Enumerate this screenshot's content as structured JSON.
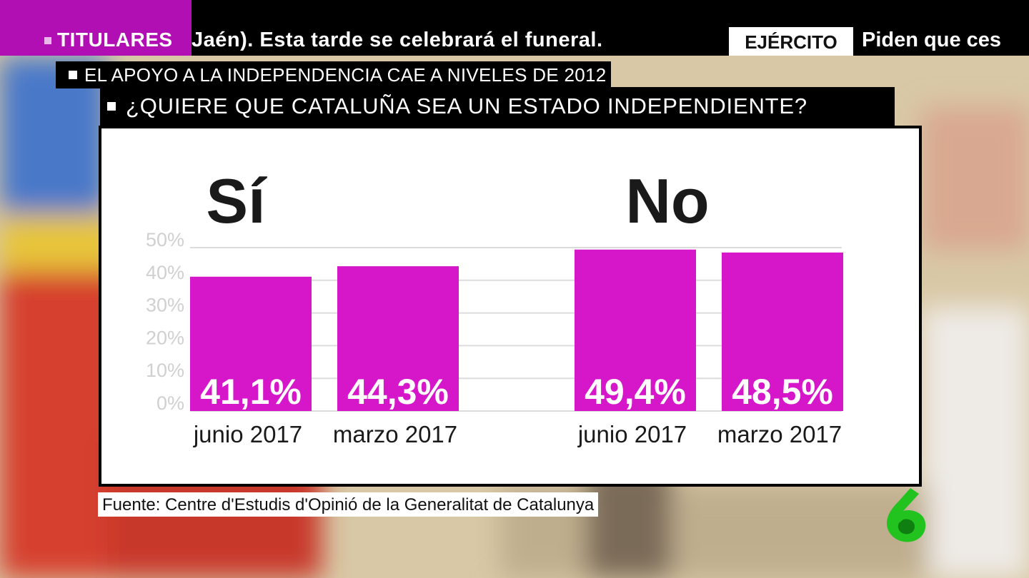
{
  "ticker": {
    "section": "TITULARES",
    "text": "Jaén). Esta tarde se celebrará el funeral.",
    "section2": "EJÉRCITO",
    "text2": "Piden que ces"
  },
  "headline": "EL APOYO A LA INDEPENDENCIA CAE A NIVELES DE 2012",
  "question": "¿QUIERE QUE CATALUÑA SEA UN ESTADO INDEPENDIENTE?",
  "source": "Fuente: Centre d'Estudis d'Opinió de la Generalitat de Catalunya",
  "colors": {
    "accent": "#d516c9",
    "ticker_tag": "#b10fb3",
    "logo": "#22c21f"
  },
  "logo": "la-sexta-logo",
  "chart_data": {
    "type": "bar",
    "yticks": [
      "50%",
      "40%",
      "30%",
      "20%",
      "10%",
      "0%"
    ],
    "ylim": [
      0,
      50
    ],
    "grid": true,
    "groups": [
      {
        "title": "Sí",
        "bars": [
          {
            "label": "junio 2017",
            "value": 41.1,
            "text": "41,1%"
          },
          {
            "label": "marzo 2017",
            "value": 44.3,
            "text": "44,3%"
          }
        ]
      },
      {
        "title": "No",
        "bars": [
          {
            "label": "junio 2017",
            "value": 49.4,
            "text": "49,4%"
          },
          {
            "label": "marzo 2017",
            "value": 48.5,
            "text": "48,5%"
          }
        ]
      }
    ]
  }
}
